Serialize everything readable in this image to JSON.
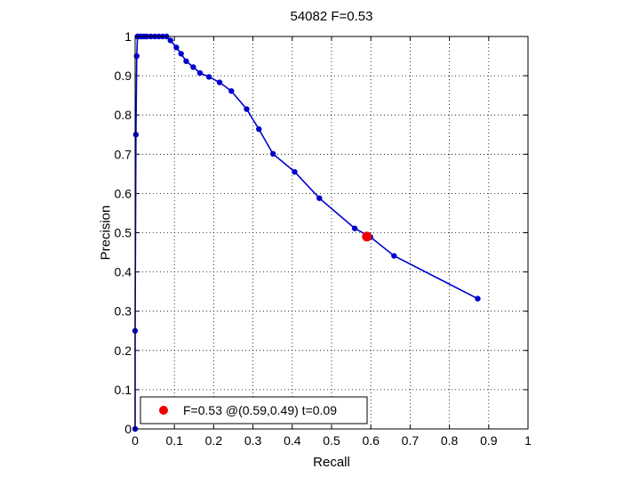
{
  "chart_data": {
    "type": "line",
    "title": "54082 F=0.53",
    "xlabel": "Recall",
    "ylabel": "Precision",
    "xlim": [
      0,
      1
    ],
    "ylim": [
      0,
      1
    ],
    "xticks": [
      0,
      0.1,
      0.2,
      0.3,
      0.4,
      0.5,
      0.6,
      0.7,
      0.8,
      0.9,
      1
    ],
    "yticks": [
      0,
      0.1,
      0.2,
      0.3,
      0.4,
      0.5,
      0.6,
      0.7,
      0.8,
      0.9,
      1
    ],
    "xtick_labels": [
      "0",
      "0.1",
      "0.2",
      "0.3",
      "0.4",
      "0.5",
      "0.6",
      "0.7",
      "0.8",
      "0.9",
      "1"
    ],
    "ytick_labels": [
      "0",
      "0.1",
      "0.2",
      "0.3",
      "0.4",
      "0.5",
      "0.6",
      "0.7",
      "0.8",
      "0.9",
      "1"
    ],
    "grid": true,
    "series": [
      {
        "color": "#0000cc",
        "marker": "dot",
        "x": [
          0.0,
          0.0,
          0.002,
          0.004,
          0.006,
          0.01,
          0.015,
          0.02,
          0.025,
          0.03,
          0.04,
          0.05,
          0.06,
          0.07,
          0.08,
          0.09,
          0.105,
          0.117,
          0.13,
          0.148,
          0.165,
          0.188,
          0.215,
          0.245,
          0.284,
          0.315,
          0.351,
          0.406,
          0.469,
          0.559,
          0.599,
          0.659,
          0.872
        ],
        "y": [
          0.0,
          0.25,
          0.75,
          0.95,
          1.0,
          1.0,
          1.0,
          1.0,
          1.0,
          1.0,
          1.0,
          1.0,
          1.0,
          1.0,
          1.0,
          0.99,
          0.972,
          0.956,
          0.937,
          0.922,
          0.907,
          0.897,
          0.883,
          0.861,
          0.815,
          0.764,
          0.701,
          0.655,
          0.588,
          0.511,
          0.489,
          0.441,
          0.332
        ]
      }
    ],
    "best_point": {
      "x": 0.59,
      "y": 0.49,
      "color": "#ee0000"
    },
    "legend": {
      "position": "bottom-left",
      "label": "F=0.53 @(0.59,0.49) t=0.09"
    }
  }
}
